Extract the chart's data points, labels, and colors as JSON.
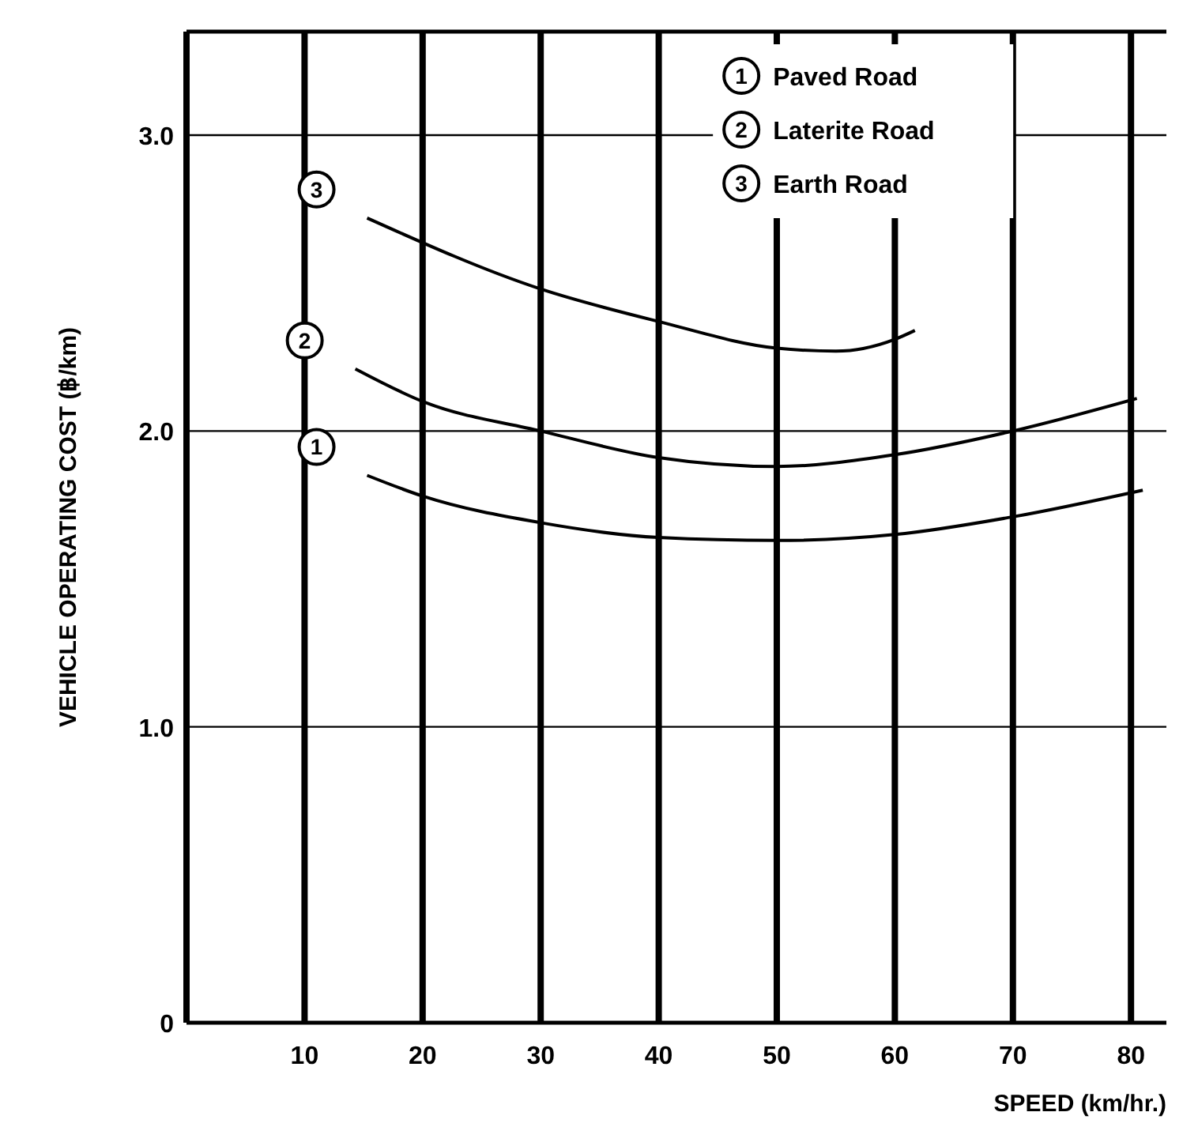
{
  "chart_data": {
    "type": "line",
    "xlabel": "SPEED (km/hr.)",
    "ylabel": "VEHICLE OPERATING COST  (฿/km)",
    "xlim": [
      0,
      83
    ],
    "xticks": [
      10,
      20,
      30,
      40,
      50,
      60,
      70,
      80
    ],
    "ylim": [
      0,
      3.35
    ],
    "yticks": [
      0,
      {
        "value": 1,
        "label": "1.0"
      },
      {
        "value": 2,
        "label": "2.0"
      },
      {
        "value": 3,
        "label": "3.0"
      }
    ],
    "grid": true,
    "legend": "top right",
    "marker": "none",
    "line_style": "solid",
    "series": [
      {
        "name": "Paved Road",
        "color": "#000000",
        "x": [
          15.3,
          20,
          30,
          40,
          50,
          60,
          70,
          81
        ],
        "values": [
          1.85,
          1.78,
          1.69,
          1.64,
          1.63,
          1.65,
          1.71,
          1.8
        ]
      },
      {
        "name": "Laterite Road",
        "color": "#000000",
        "x": [
          14.3,
          20,
          30,
          40,
          50,
          60,
          70,
          80.5
        ],
        "values": [
          2.21,
          2.1,
          2.0,
          1.91,
          1.88,
          1.92,
          2.0,
          2.11
        ]
      },
      {
        "name": "Earth Road",
        "color": "#000000",
        "x": [
          15.3,
          30,
          40,
          50,
          55,
          60,
          61.7
        ],
        "values": [
          2.72,
          2.48,
          2.37,
          2.28,
          2.27,
          2.31,
          2.34
        ]
      }
    ],
    "annotations": [
      "1",
      "2",
      "3"
    ]
  }
}
